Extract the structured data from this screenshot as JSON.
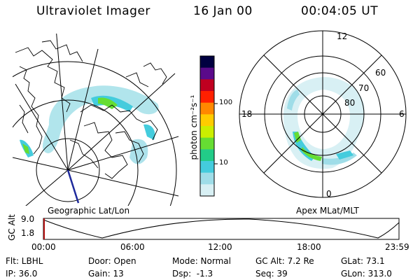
{
  "header": {
    "instrument": "Ultraviolet Imager",
    "date": "16 Jan 00",
    "time": "00:04:05 UT"
  },
  "left_panel": {
    "caption": "Geographic Lat/Lon"
  },
  "right_panel": {
    "caption": "Apex MLat/MLT",
    "mlt_labels": {
      "top": "12",
      "bottom": "0",
      "left": "18",
      "right": "6"
    },
    "mlat_labels": [
      "60",
      "70",
      "80"
    ]
  },
  "colorbar": {
    "unit_label": "photon cm⁻²s⁻¹",
    "ticks": [
      "100",
      "10"
    ],
    "colors": [
      "#000040",
      "#5a0a8a",
      "#c00020",
      "#ff2000",
      "#ff8800",
      "#ffcc00",
      "#ccee00",
      "#66dd33",
      "#22cc88",
      "#44ccdd",
      "#9fdde8",
      "#d8f0f4"
    ]
  },
  "altitude_strip": {
    "ylabel": "GC Alt",
    "yticks": [
      "9.0",
      "1.8"
    ],
    "xticks": [
      "00:00",
      "06:00",
      "12:00",
      "18:00",
      "23:59"
    ]
  },
  "status": {
    "row1": {
      "filter": "Flt: LBHL",
      "door": "Door: Open",
      "mode": "Mode: Normal",
      "gc_alt": "GC Alt: 7.2 Re",
      "glat": "GLat: 73.1"
    },
    "row2": {
      "ip": "IP: 36.0",
      "gain": "Gain: 13",
      "dsp": "Dsp:  -1.3",
      "seq": "Seq: 39",
      "glon": "GLon: 313.0"
    }
  }
}
